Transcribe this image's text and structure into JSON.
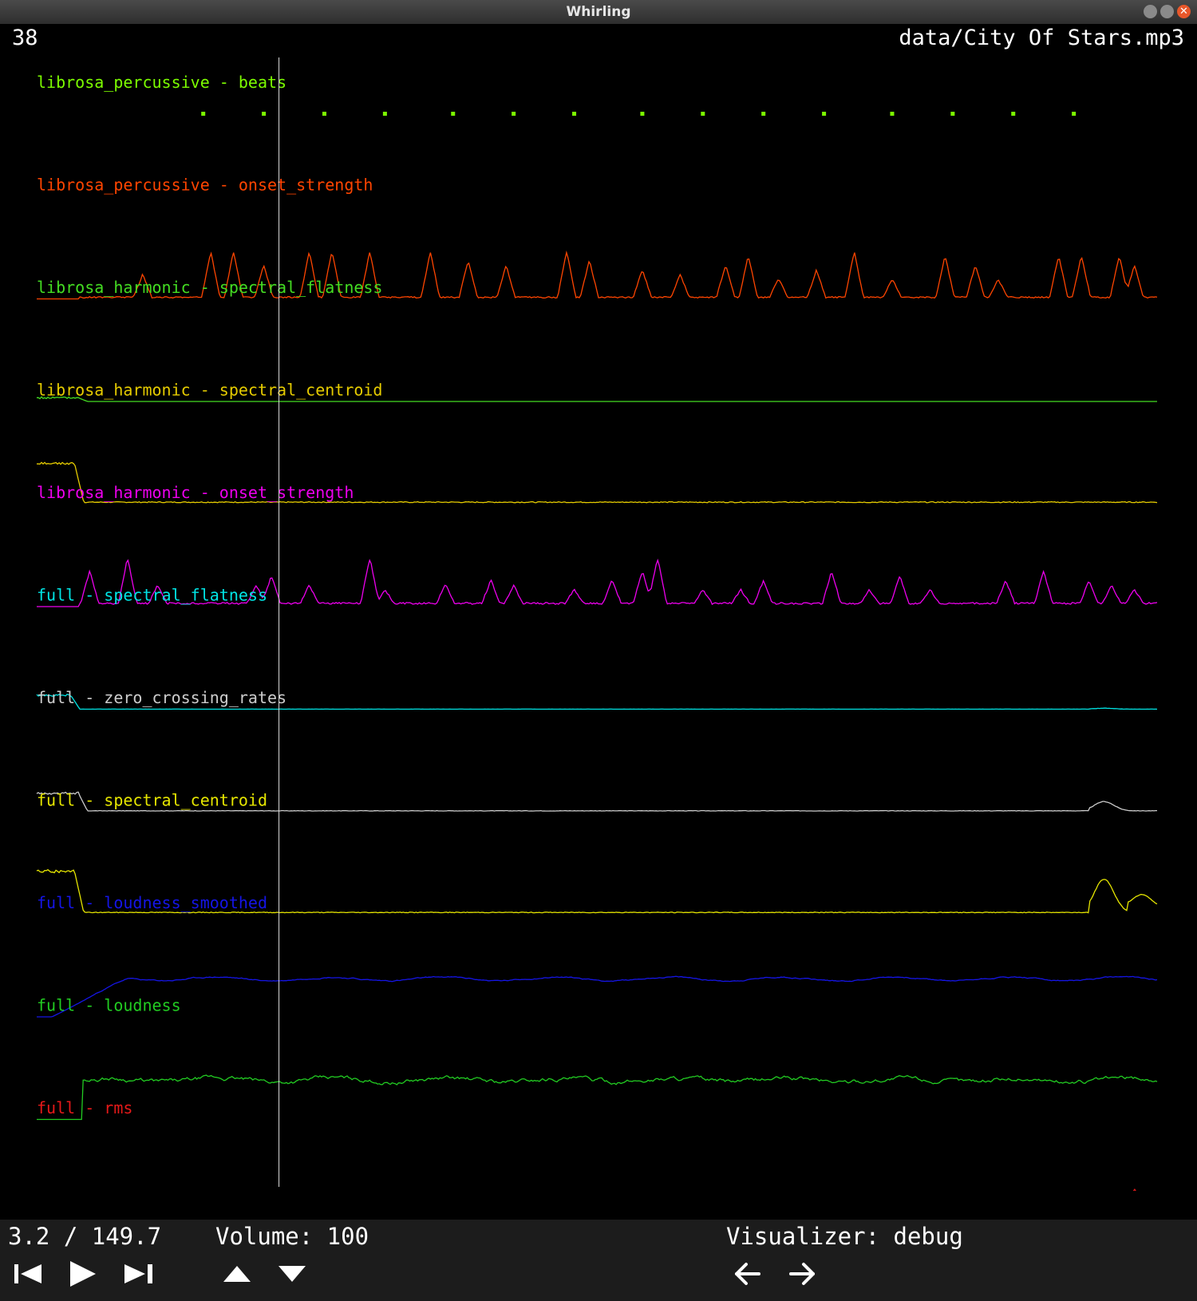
{
  "window": {
    "title": "Whirling"
  },
  "header": {
    "frame_number": "38",
    "file_name": "data/City Of Stars.mp3"
  },
  "playhead_seconds": 3.2,
  "duration_seconds": 149.7,
  "tracks": [
    {
      "label": "librosa_percussive - beats",
      "color": "#7cfc00",
      "type": "beats",
      "values": [
        2.2,
        3.0,
        3.8,
        4.6,
        5.5,
        6.3,
        7.1,
        8.0,
        8.8,
        9.6,
        10.4,
        11.3,
        12.1,
        12.9,
        13.7
      ]
    },
    {
      "label": "librosa_percussive - onset_strength",
      "color": "#ff4500",
      "type": "line",
      "pattern": "spiky",
      "seed": 3,
      "base": 0.02,
      "noise": 0.06,
      "events": [
        [
          1.4,
          0.5
        ],
        [
          2.3,
          1.0
        ],
        [
          2.6,
          1.0
        ],
        [
          3.0,
          0.7
        ],
        [
          3.6,
          1.0
        ],
        [
          3.9,
          1.0
        ],
        [
          4.4,
          1.0
        ],
        [
          5.2,
          1.0
        ],
        [
          5.7,
          0.8
        ],
        [
          6.2,
          0.7
        ],
        [
          7.0,
          1.0
        ],
        [
          7.3,
          0.8
        ],
        [
          8.0,
          0.6
        ],
        [
          8.5,
          0.5
        ],
        [
          9.1,
          0.7
        ],
        [
          9.4,
          0.9
        ],
        [
          9.8,
          0.4
        ],
        [
          10.3,
          0.6
        ],
        [
          10.8,
          1.0
        ],
        [
          11.3,
          0.4
        ],
        [
          12.0,
          0.9
        ],
        [
          12.4,
          0.7
        ],
        [
          12.7,
          0.4
        ],
        [
          13.5,
          0.9
        ],
        [
          13.8,
          0.9
        ],
        [
          14.3,
          0.9
        ],
        [
          14.5,
          0.7
        ]
      ]
    },
    {
      "label": "librosa_harmonic - spectral_flatness",
      "color": "#44dd22",
      "type": "line",
      "pattern": "flat",
      "seed": 5,
      "base": 0.0,
      "noise": 0.0,
      "intro_level": 0.08,
      "intro_end": 0.55
    },
    {
      "label": "librosa_harmonic - spectral_centroid",
      "color": "#e6cc00",
      "type": "line",
      "pattern": "intro",
      "seed": 7,
      "base": 0.04,
      "noise": 0.02,
      "intro_level": 0.88,
      "intro_end": 0.5
    },
    {
      "label": "librosa_harmonic - onset_strength",
      "color": "#ee00ee",
      "type": "line",
      "pattern": "spiky",
      "seed": 11,
      "base": 0.05,
      "noise": 0.08,
      "events": [
        [
          0.7,
          0.7
        ],
        [
          1.2,
          1.0
        ],
        [
          1.6,
          0.4
        ],
        [
          2.9,
          0.4
        ],
        [
          3.1,
          0.6
        ],
        [
          3.6,
          0.4
        ],
        [
          4.4,
          1.0
        ],
        [
          4.6,
          0.3
        ],
        [
          5.4,
          0.4
        ],
        [
          6.0,
          0.5
        ],
        [
          6.3,
          0.4
        ],
        [
          7.1,
          0.3
        ],
        [
          7.6,
          0.5
        ],
        [
          8.0,
          0.7
        ],
        [
          8.2,
          1.0
        ],
        [
          8.8,
          0.3
        ],
        [
          9.3,
          0.3
        ],
        [
          9.6,
          0.5
        ],
        [
          10.5,
          0.7
        ],
        [
          11.0,
          0.3
        ],
        [
          11.4,
          0.6
        ],
        [
          11.8,
          0.3
        ],
        [
          12.8,
          0.5
        ],
        [
          13.3,
          0.7
        ],
        [
          13.9,
          0.5
        ],
        [
          14.2,
          0.4
        ],
        [
          14.5,
          0.3
        ]
      ]
    },
    {
      "label": "full - spectral_flatness",
      "color": "#00e5e5",
      "type": "line",
      "pattern": "intro",
      "seed": 13,
      "base": 0.0,
      "noise": 0.005,
      "intro_level": 0.3,
      "intro_end": 0.45,
      "bumps": [
        [
          13.9,
          0.02
        ]
      ]
    },
    {
      "label": "full - zero_crossing_rates",
      "color": "#cccccc",
      "type": "line",
      "pattern": "intro",
      "seed": 17,
      "base": 0.02,
      "noise": 0.01,
      "intro_level": 0.4,
      "intro_end": 0.55,
      "bumps": [
        [
          13.9,
          0.2
        ]
      ]
    },
    {
      "label": "full - spectral_centroid",
      "color": "#e6e600",
      "type": "line",
      "pattern": "intro",
      "seed": 19,
      "base": 0.04,
      "noise": 0.015,
      "intro_level": 0.93,
      "intro_end": 0.5,
      "bumps": [
        [
          13.9,
          0.72
        ],
        [
          14.4,
          0.3
        ]
      ]
    },
    {
      "label": "full - loudness_smoothed",
      "color": "#1515e6",
      "type": "line",
      "pattern": "wavy",
      "seed": 23,
      "base": 0.82,
      "noise": 0.03,
      "ramp_end": 1.2,
      "intro_end": 0.2
    },
    {
      "label": "full - loudness",
      "color": "#22cc22",
      "type": "line",
      "pattern": "wavy",
      "seed": 29,
      "base": 0.85,
      "noise": 0.1,
      "ramp_end": 0.6,
      "intro_end": 0.6
    },
    {
      "label": "full - rms",
      "color": "#e61919",
      "type": "line",
      "pattern": "wavy",
      "seed": 31,
      "base": 0.2,
      "noise": 0.08,
      "ramp_end": 0.6,
      "intro_end": 0.2,
      "tail": [
        [
          14.5,
          0.55
        ]
      ]
    }
  ],
  "footer": {
    "time": "3.2 / 149.7",
    "volume": "Volume: 100",
    "visualizer": "Visualizer: debug"
  }
}
